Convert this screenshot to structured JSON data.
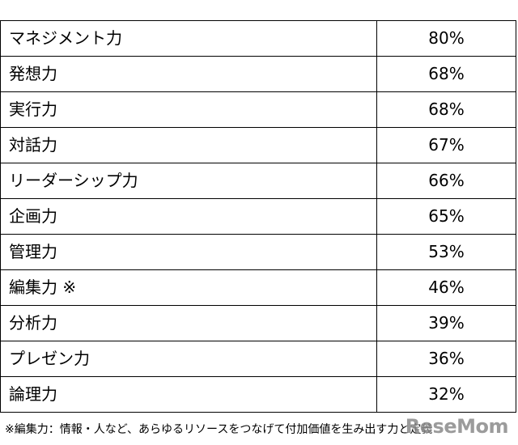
{
  "table": {
    "rows": [
      {
        "label": "マネジメント力",
        "value": "80%"
      },
      {
        "label": "発想力",
        "value": "68%"
      },
      {
        "label": "実行力",
        "value": "68%"
      },
      {
        "label": "対話力",
        "value": "67%"
      },
      {
        "label": "リーダーシップ力",
        "value": "66%"
      },
      {
        "label": "企画力",
        "value": "65%"
      },
      {
        "label": "管理力",
        "value": "53%"
      },
      {
        "label": "編集力 ※",
        "value": "46%"
      },
      {
        "label": "分析力",
        "value": "39%"
      },
      {
        "label": "プレゼン力",
        "value": "36%"
      },
      {
        "label": "論理力",
        "value": "32%"
      }
    ]
  },
  "footnote": "※編集力：情報・人など、あらゆるリソースをつなげて付加価値を生み出す力と定義",
  "watermark": "ReseMom"
}
